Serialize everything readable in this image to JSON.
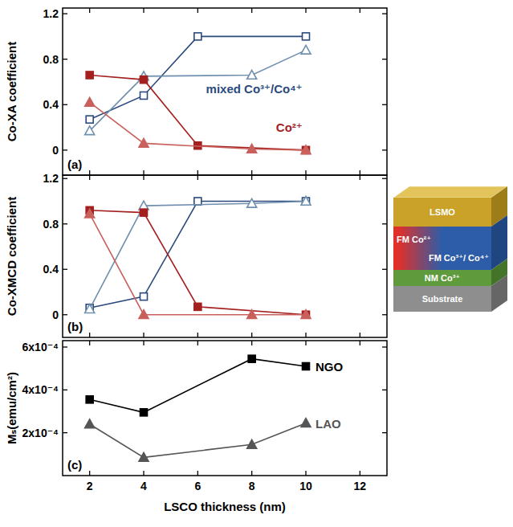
{
  "chart_data": [
    {
      "type": "line",
      "panel_label": "(a)",
      "y_label": "Co-XA coefficient",
      "xlim": [
        1,
        13
      ],
      "xticks": [
        2,
        4,
        6,
        8,
        10,
        12
      ],
      "ylim": [
        -0.22,
        1.25
      ],
      "yticks": [
        0,
        0.4,
        0.8,
        1.2
      ],
      "tick_labels": "y",
      "annotations": [
        {
          "text": "mixed Co³⁺/Co⁴⁺",
          "color": "#2b4a7e"
        },
        {
          "text": "Co²⁺",
          "color": "#a3201f"
        }
      ],
      "series": [
        {
          "x": [
            2,
            4,
            6,
            10
          ],
          "values": [
            0.27,
            0.48,
            1.0,
            1.0
          ],
          "color": "#2b4a7e",
          "marker": "square-open"
        },
        {
          "x": [
            2,
            4,
            8,
            10
          ],
          "values": [
            0.17,
            0.65,
            0.66,
            0.88
          ],
          "color": "#6f8fae",
          "marker": "triangle-open"
        },
        {
          "x": [
            2,
            4,
            6,
            10
          ],
          "values": [
            0.66,
            0.62,
            0.04,
            0.0
          ],
          "color": "#a3201f",
          "marker": "square"
        },
        {
          "x": [
            2,
            4,
            8,
            10
          ],
          "values": [
            0.42,
            0.06,
            0.01,
            0.0
          ],
          "color": "#c9605c",
          "marker": "triangle"
        }
      ]
    },
    {
      "type": "line",
      "panel_label": "(b)",
      "y_label": "Co-XMCD coefficient",
      "xlim": [
        1,
        13
      ],
      "xticks": [
        2,
        4,
        6,
        8,
        10,
        12
      ],
      "ylim": [
        -0.2,
        1.23
      ],
      "yticks": [
        0,
        0.4,
        0.8,
        1.2
      ],
      "tick_labels": "y",
      "series": [
        {
          "x": [
            2,
            4,
            6,
            10
          ],
          "values": [
            0.06,
            0.16,
            1.0,
            1.0
          ],
          "color": "#2b4a7e",
          "marker": "square-open"
        },
        {
          "x": [
            2,
            4,
            8,
            10
          ],
          "values": [
            0.05,
            0.96,
            0.98,
            1.0
          ],
          "color": "#6f8fae",
          "marker": "triangle-open"
        },
        {
          "x": [
            2,
            4,
            6,
            10
          ],
          "values": [
            0.92,
            0.9,
            0.07,
            0.0
          ],
          "color": "#a3201f",
          "marker": "square"
        },
        {
          "x": [
            2,
            4,
            8,
            10
          ],
          "values": [
            0.89,
            0.0,
            0.0,
            0.0
          ],
          "color": "#c9605c",
          "marker": "triangle"
        }
      ]
    },
    {
      "type": "line",
      "panel_label": "(c)",
      "y_label": "Mₛ(emu/cm²)",
      "x_label": "LSCO thickness (nm)",
      "xlim": [
        1,
        13
      ],
      "xticks": [
        2,
        4,
        6,
        8,
        10,
        12
      ],
      "ylim": [
        0,
        0.00063
      ],
      "yticks": [
        {
          "value": 0.0002,
          "label": "2x10⁻⁴"
        },
        {
          "value": 0.0004,
          "label": "4x10⁻⁴"
        },
        {
          "value": 0.0006,
          "label": "6x10⁻⁴"
        }
      ],
      "tick_labels": true,
      "series": [
        {
          "name": "NGO",
          "x": [
            2,
            4,
            8,
            10
          ],
          "values": [
            0.000355,
            0.000295,
            0.000545,
            0.00051
          ],
          "color": "#000000",
          "marker": "square"
        },
        {
          "name": "LAO",
          "x": [
            2,
            4,
            8,
            10
          ],
          "values": [
            0.00024,
            8.5e-05,
            0.000145,
            0.000245
          ],
          "color": "#555555",
          "marker": "triangle"
        }
      ]
    }
  ],
  "diagram": {
    "layers": [
      "LSMO",
      "FM Co²⁺",
      "FM Co³⁺/ Co⁴⁺",
      "NM Co³⁺",
      "Substrate"
    ]
  }
}
